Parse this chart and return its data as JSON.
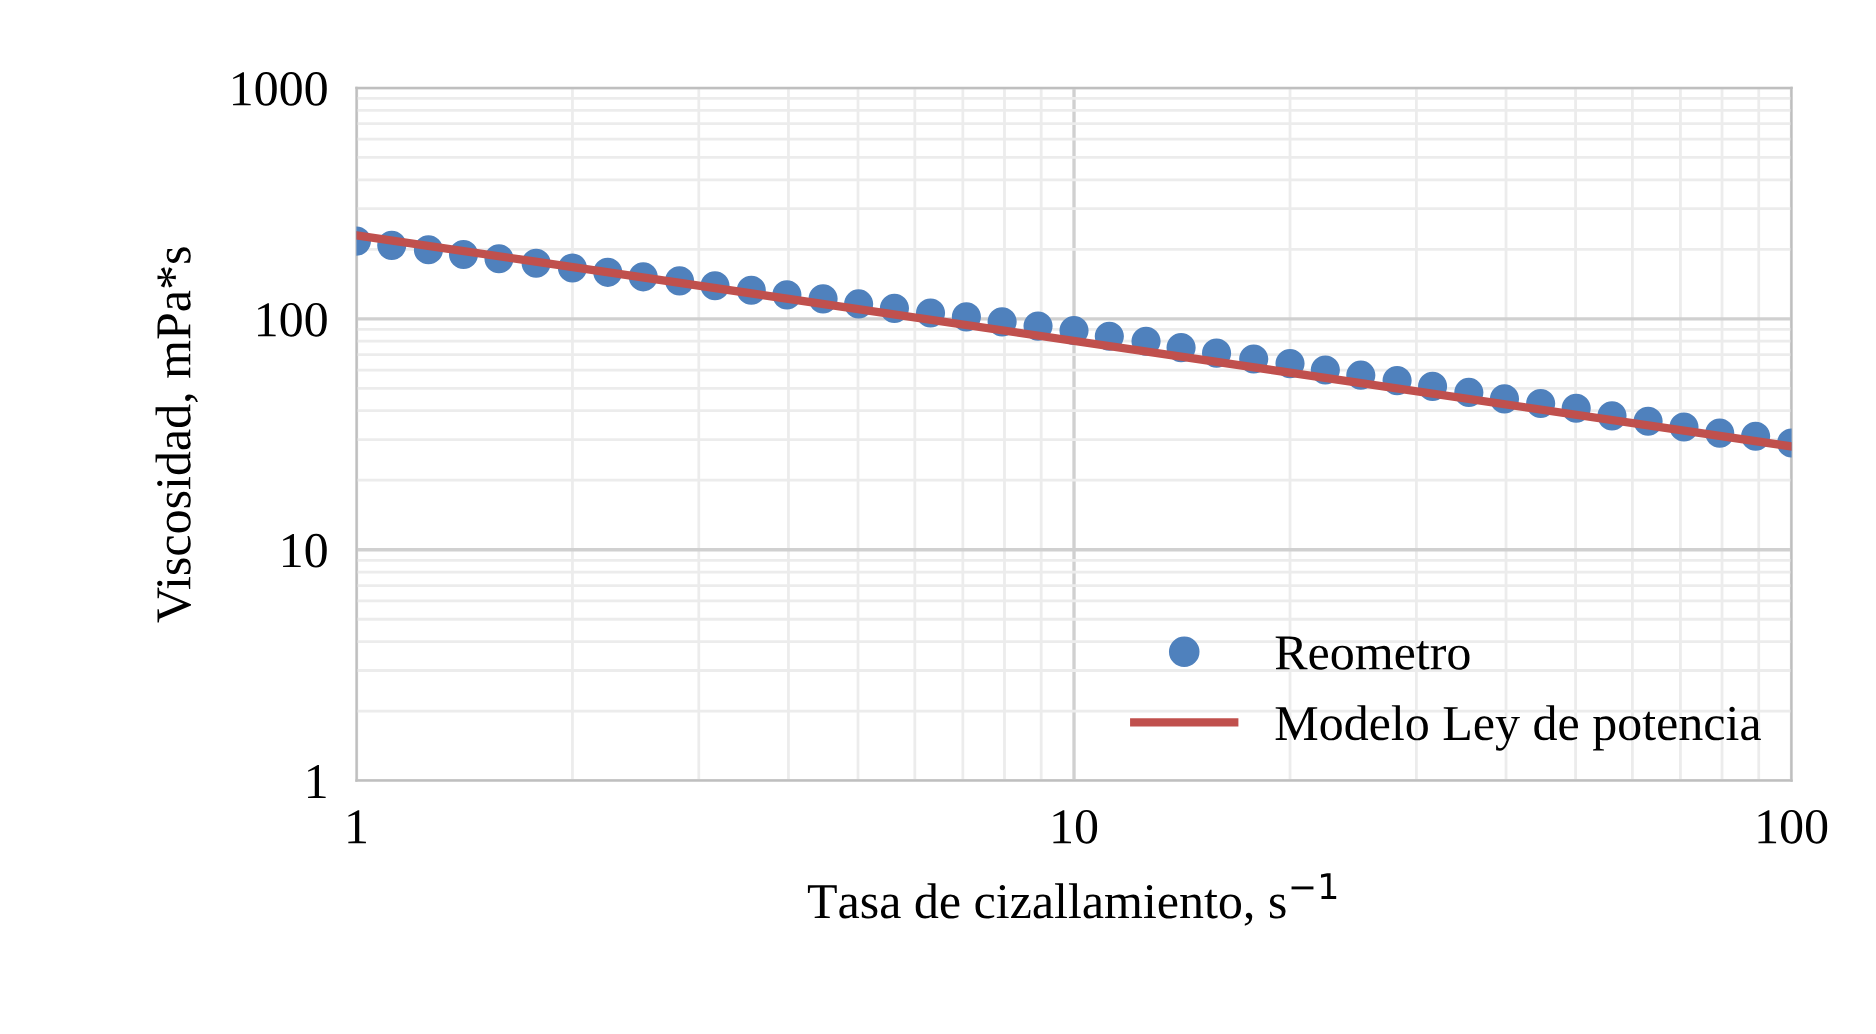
{
  "chart_data": {
    "type": "scatter",
    "xlabel": "Tasa de cizallamiento, s$^{−1}$",
    "ylabel": "Viscosidad, mPa*s",
    "log": "xy",
    "xlim": [
      1,
      100
    ],
    "ylim": [
      1,
      1000
    ],
    "xticks": [
      1,
      10,
      100
    ],
    "yticks": [
      1,
      10,
      100,
      1000
    ],
    "grid": true,
    "legend": "bottom right",
    "series": [
      {
        "name": "Reometro",
        "marker": "circle",
        "color": "#4f81bd",
        "x": [
          1,
          1.12,
          1.26,
          1.41,
          1.58,
          1.78,
          2,
          2.24,
          2.51,
          2.82,
          3.16,
          3.55,
          3.98,
          4.47,
          5.01,
          5.62,
          6.31,
          7.08,
          7.94,
          8.91,
          10,
          11.2,
          12.6,
          14.1,
          15.8,
          17.8,
          20,
          22.4,
          25.1,
          28.2,
          31.6,
          35.5,
          39.8,
          44.7,
          50.1,
          56.2,
          63.1,
          70.8,
          79.4,
          89.1,
          100
        ],
        "values": [
          217,
          208,
          199,
          190,
          182,
          174,
          166,
          159,
          152,
          146,
          139,
          133,
          127,
          122,
          116,
          111,
          106,
          102,
          97,
          93,
          89,
          84,
          80,
          75,
          71,
          67,
          64,
          60,
          57,
          54,
          51,
          48,
          45,
          43,
          41,
          38,
          36,
          34,
          32,
          31,
          29
        ]
      },
      {
        "name": "Modelo Ley de potencia",
        "type": "line",
        "color": "#c0504d",
        "x": [
          1,
          100
        ],
        "values": [
          230,
          28
        ]
      }
    ]
  }
}
